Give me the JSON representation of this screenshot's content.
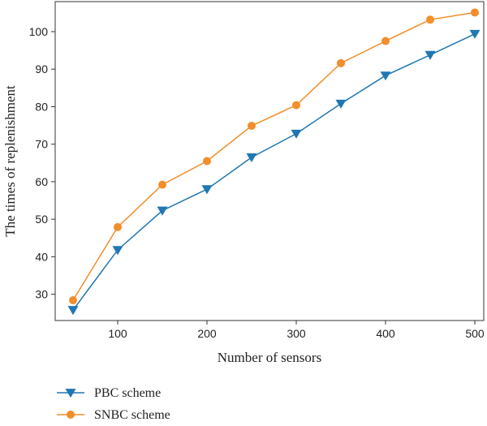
{
  "chart_data": {
    "type": "line",
    "title": "",
    "xlabel": "Number of sensors",
    "ylabel": "The times of replenishment",
    "x": [
      50,
      100,
      150,
      200,
      250,
      300,
      350,
      400,
      450,
      500
    ],
    "xticks": [
      100,
      200,
      300,
      400,
      500
    ],
    "yticks": [
      30,
      40,
      50,
      60,
      70,
      80,
      90,
      100
    ],
    "xlim": [
      30,
      510
    ],
    "ylim": [
      23,
      108
    ],
    "grid": false,
    "legend_position": "bottom-left",
    "series": [
      {
        "name": "PBC scheme",
        "marker": "triangle-down",
        "color": "#1f77b4",
        "values": [
          25.8,
          41.8,
          52.3,
          58.0,
          66.5,
          72.8,
          80.8,
          88.3,
          93.8,
          99.4
        ]
      },
      {
        "name": "SNBC scheme",
        "marker": "circle",
        "color": "#f28e2b",
        "values": [
          28.4,
          47.9,
          59.2,
          65.5,
          74.9,
          80.4,
          91.6,
          97.5,
          103.2,
          105.1
        ]
      }
    ]
  }
}
